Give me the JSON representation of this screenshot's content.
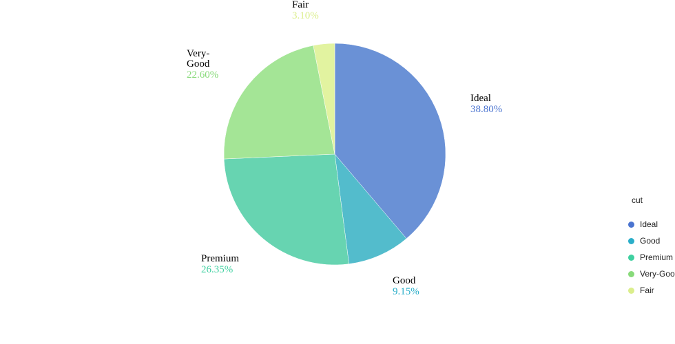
{
  "chart_data": {
    "type": "pie",
    "categories": [
      "Ideal",
      "Good",
      "Premium",
      "Very-Good",
      "Fair"
    ],
    "values": [
      38.8,
      9.15,
      26.35,
      22.6,
      3.1
    ],
    "labels": [
      "Ideal",
      "Good",
      "Premium",
      "Very-Good",
      "Fair"
    ],
    "value_labels": [
      "38.80%",
      "9.15%",
      "26.35%",
      "22.60%",
      "3.10%"
    ],
    "colors": [
      "#6a91d6",
      "#53bccc",
      "#67d4b1",
      "#a4e596",
      "#e2f3a0"
    ],
    "label_colors": [
      "#4b74d0",
      "#2aaec9",
      "#3fd0a0",
      "#88da7a",
      "#dbee8c"
    ],
    "legend": {
      "title": "cut",
      "position": "right",
      "items": [
        "Ideal",
        "Good",
        "Premium",
        "Very-Goo",
        "Fair"
      ]
    },
    "start_angle": "12 o'clock",
    "direction": "clockwise"
  }
}
